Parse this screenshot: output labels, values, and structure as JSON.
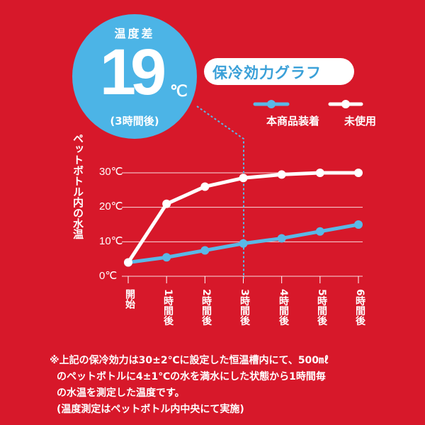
{
  "badge": {
    "top_label": "温度差",
    "value": "19",
    "unit": "℃",
    "sub_label": "(3時間後)"
  },
  "title": "保冷効力グラフ",
  "legend": [
    {
      "label": "本商品装着",
      "color": "#5ab8e6"
    },
    {
      "label": "未使用",
      "color": "#ffffff"
    }
  ],
  "chart_data": {
    "type": "line",
    "title": "保冷効力グラフ",
    "ylabel": "ペットボトル内の水温",
    "y_ticks": [
      "0℃",
      "10℃",
      "20℃",
      "30℃"
    ],
    "ylim": [
      0,
      30
    ],
    "categories": [
      "開始",
      "1時間後",
      "2時間後",
      "3時間後",
      "4時間後",
      "5時間後",
      "6時間後"
    ],
    "x": [
      0,
      1,
      2,
      3,
      4,
      5,
      6
    ],
    "series": [
      {
        "name": "本商品装着",
        "color": "#5ab8e6",
        "values": [
          4,
          5.5,
          7.5,
          9.5,
          11,
          13,
          15
        ]
      },
      {
        "name": "未使用",
        "color": "#ffffff",
        "values": [
          4,
          21,
          26,
          28.5,
          29.5,
          30,
          30
        ]
      }
    ],
    "grid": true,
    "legend_position": "top-right",
    "annotation": "3時間後の温度差 19℃"
  },
  "footnote": {
    "lines": [
      "※上記の保冷効力は30±2℃に設定した恒温槽内にて、500㎖",
      "のペットボトルに4±1℃の水を満水にした状態から1時間毎",
      "の水温を測定した温度です。",
      "(温度測定はペットボトル内中央にて実施)"
    ]
  },
  "colors": {
    "background": "#d7182a",
    "accent": "#4cb4e6",
    "text": "#ffffff"
  }
}
